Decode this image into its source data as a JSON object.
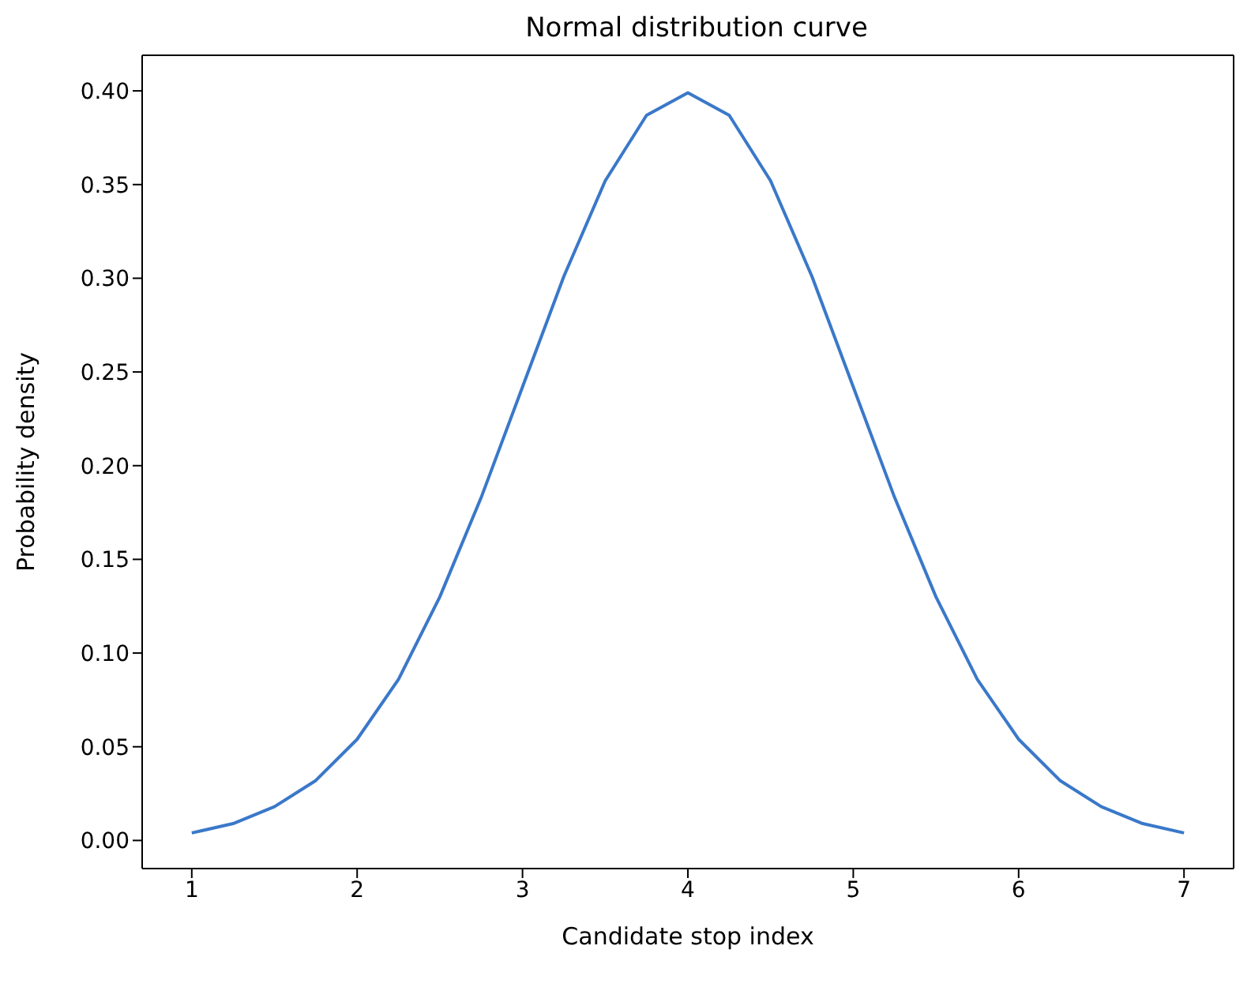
{
  "chart_data": {
    "type": "line",
    "title": "Normal distribution curve",
    "xlabel": "Candidate stop index",
    "ylabel": "Probability density",
    "x": [
      1,
      1.25,
      1.5,
      1.75,
      2,
      2.25,
      2.5,
      2.75,
      3,
      3.25,
      3.5,
      3.75,
      4,
      4.25,
      4.5,
      4.75,
      5,
      5.25,
      5.5,
      5.75,
      6,
      6.25,
      6.5,
      6.75,
      7
    ],
    "series": [
      {
        "color": "#3a78c9",
        "values": [
          0.004,
          0.009,
          0.018,
          0.032,
          0.054,
          0.086,
          0.13,
          0.183,
          0.242,
          0.301,
          0.352,
          0.387,
          0.399,
          0.387,
          0.352,
          0.301,
          0.242,
          0.183,
          0.13,
          0.086,
          0.054,
          0.032,
          0.018,
          0.009,
          0.004
        ]
      }
    ],
    "xlim": [
      0.7,
      7.3
    ],
    "xticks": [
      1,
      2,
      3,
      4,
      5,
      6,
      7
    ],
    "ylim": [
      -0.015,
      0.419
    ],
    "yticks": [
      {
        "value": 0,
        "label": "0.00"
      },
      {
        "value": 0.05,
        "label": "0.05"
      },
      {
        "value": 0.1,
        "label": "0.10"
      },
      {
        "value": 0.15,
        "label": "0.15"
      },
      {
        "value": 0.2,
        "label": "0.20"
      },
      {
        "value": 0.25,
        "label": "0.25"
      },
      {
        "value": 0.3,
        "label": "0.30"
      },
      {
        "value": 0.35,
        "label": "0.35"
      },
      {
        "value": 0.4,
        "label": "0.40"
      }
    ]
  }
}
